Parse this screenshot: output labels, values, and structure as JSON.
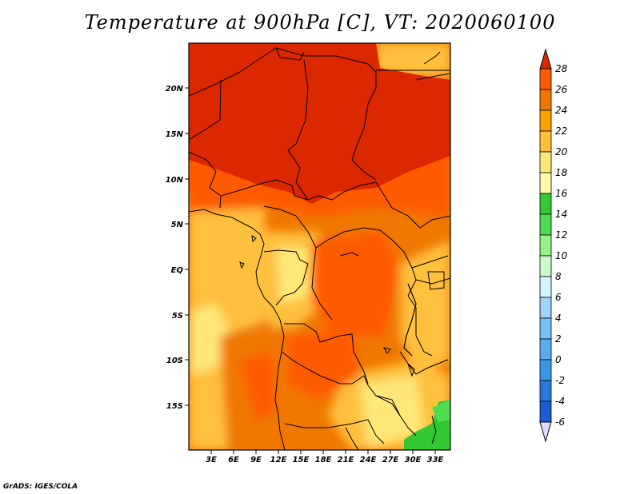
{
  "title": "Temperature at 900hPa [C], VT: 2020060100",
  "credit": "GrADS: IGES/COLA",
  "map": {
    "lon_range": [
      0,
      35
    ],
    "lat_range": [
      -20,
      25
    ],
    "lon_ticks": [
      "3E",
      "6E",
      "9E",
      "12E",
      "15E",
      "18E",
      "21E",
      "24E",
      "27E",
      "30E",
      "33E"
    ],
    "lat_ticks": [
      "20N",
      "15N",
      "10N",
      "5N",
      "EQ",
      "5S",
      "10S",
      "15S"
    ]
  },
  "colorbar": {
    "levels": [
      "-6",
      "-4",
      "-2",
      "0",
      "2",
      "4",
      "6",
      "8",
      "10",
      "12",
      "14",
      "16",
      "18",
      "20",
      "22",
      "24",
      "26",
      "28"
    ],
    "colors": [
      "#1e1e8c",
      "#1e3cc8",
      "#1e5ad2",
      "#2878dc",
      "#3c96e6",
      "#5aaaf0",
      "#78c3f5",
      "#a0d2fa",
      "#d2f5ff",
      "#c8ffc8",
      "#96f08c",
      "#50dc50",
      "#32c832",
      "#fffaaa",
      "#ffe878",
      "#ffc03c",
      "#ffa000",
      "#f07800",
      "#ff5a00",
      "#dc2800",
      "#fafaff"
    ],
    "under_color": "#dcdcff",
    "over_color": "#dc2800"
  }
}
